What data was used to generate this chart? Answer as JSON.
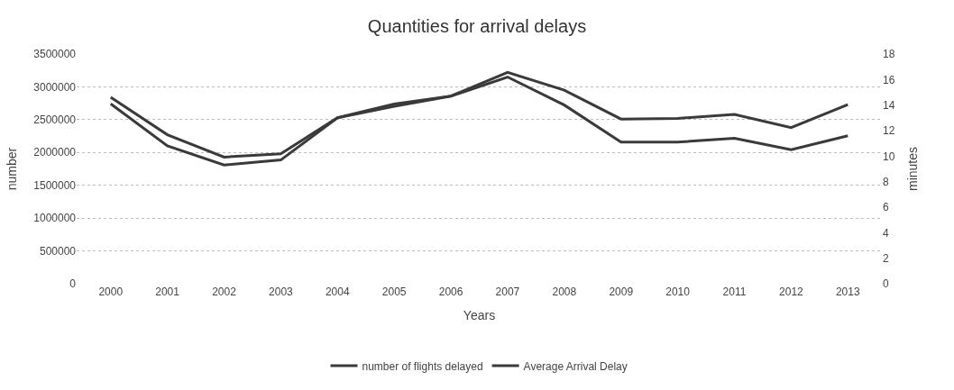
{
  "chart_data": {
    "type": "line",
    "title": "Quantities for arrival delays",
    "xlabel": "Years",
    "ylabel": "number",
    "y2label": "minutes",
    "categories": [
      "2000",
      "2001",
      "2002",
      "2003",
      "2004",
      "2005",
      "2006",
      "2007",
      "2008",
      "2009",
      "2010",
      "2011",
      "2012",
      "2013"
    ],
    "series": [
      {
        "name": "number of flights delayed",
        "color": "#3a3a3a",
        "values": [
          2840000,
          2270000,
          1930000,
          1980000,
          2530000,
          2740000,
          2860000,
          3220000,
          2950000,
          2510000,
          2520000,
          2580000,
          2380000,
          2730000
        ]
      },
      {
        "name": "Average Arrival Delay",
        "color": "#3a3a3a",
        "axis": "y2",
        "values": [
          14.1,
          10.8,
          9.3,
          9.7,
          13.0,
          13.9,
          14.7,
          16.2,
          14.0,
          11.1,
          11.1,
          11.4,
          10.5,
          11.6
        ]
      }
    ],
    "ylim": [
      0,
      3500000
    ],
    "yticks": [
      0,
      500000,
      1000000,
      1500000,
      2000000,
      2500000,
      3000000,
      3500000
    ],
    "y2lim": [
      0,
      18
    ],
    "y2ticks": [
      0,
      2,
      4,
      6,
      8,
      10,
      12,
      14,
      16,
      18
    ],
    "grid": "y",
    "legend": "bottom",
    "marker": "none",
    "line_style": "solid"
  }
}
